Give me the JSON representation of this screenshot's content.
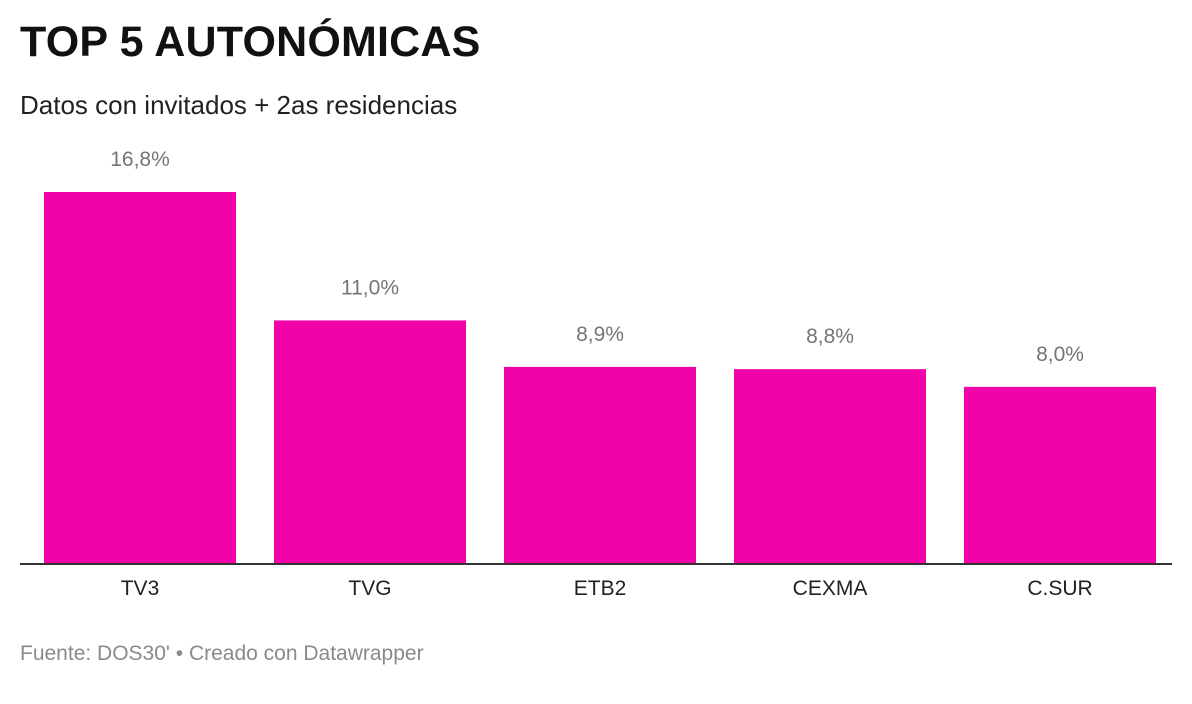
{
  "header": {
    "title": "TOP 5 AUTONÓMICAS",
    "subtitle": "Datos con invitados + 2as residencias"
  },
  "footer": {
    "source_text": "Fuente: DOS30' • Creado con Datawrapper"
  },
  "colors": {
    "bar": "#f003a9",
    "baseline": "#333333",
    "value_label": "#757575"
  },
  "chart_data": {
    "type": "bar",
    "title": "TOP 5 AUTONÓMICAS",
    "subtitle": "Datos con invitados + 2as residencias",
    "categories": [
      "TV3",
      "TVG",
      "ETB2",
      "CEXMA",
      "C.SUR"
    ],
    "values": [
      16.8,
      11.0,
      8.9,
      8.8,
      8.0
    ],
    "value_labels": [
      "16,8%",
      "11,0%",
      "8,9%",
      "8,8%",
      "8,0%"
    ],
    "xlabel": "",
    "ylabel": "",
    "ylim": [
      0,
      16.8
    ],
    "grid": false,
    "legend": "none"
  }
}
